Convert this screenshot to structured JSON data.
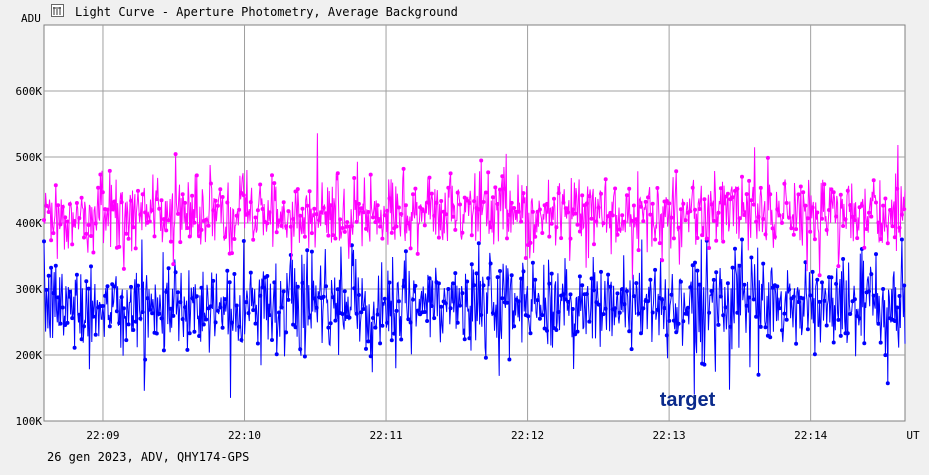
{
  "window": {
    "title": "Light Curve - Aperture Photometry, Average Background",
    "icon": "light-curve-icon"
  },
  "footer": {
    "text": "26 gen 2023, ADV, QHY174-GPS"
  },
  "colors": {
    "background": "#f0f0f0",
    "plot_background": "#ffffff",
    "grid": "#a0a0a0",
    "target": "#0000ff",
    "background_series": "#ff00ff",
    "annotation": "#0a2a8c"
  },
  "chart_data": {
    "type": "line",
    "ylabel": "ADU",
    "xlabel": "UT",
    "ylim": [
      100000,
      700000
    ],
    "xlim": [
      "22:08:35",
      "22:14:40"
    ],
    "x_ticks": [
      "22:09",
      "22:10",
      "22:11",
      "22:12",
      "22:13",
      "22:14"
    ],
    "y_ticks": [
      {
        "value": 100000,
        "label": "100K"
      },
      {
        "value": 200000,
        "label": "200K"
      },
      {
        "value": 300000,
        "label": "300K"
      },
      {
        "value": 400000,
        "label": "400K"
      },
      {
        "value": 500000,
        "label": "500K"
      },
      {
        "value": 600000,
        "label": "600K"
      }
    ],
    "grid": true,
    "series": [
      {
        "name": "target",
        "color": "#0000ff",
        "mean": 275000,
        "spread": 35000,
        "min": 135000,
        "max": 375000
      },
      {
        "name": "",
        "color": "#ff00ff",
        "mean": 415000,
        "spread": 27000,
        "min": 248000,
        "max": 605000
      }
    ],
    "annotations": [
      {
        "text": "target",
        "x": "22:13:10",
        "y": 120000
      }
    ]
  }
}
